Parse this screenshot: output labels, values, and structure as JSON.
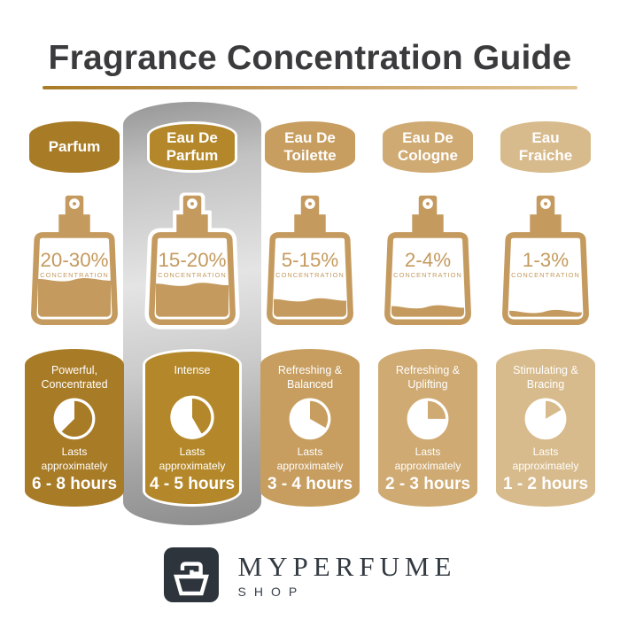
{
  "title": "Fragrance Concentration Guide",
  "concentration_label": "CONCENTRATION",
  "colors": {
    "title_text": "#3b3b3d",
    "underline_from": "#a97c28",
    "underline_to": "#e2c694",
    "bottle_gold": "#c49a5e",
    "highlight_silver": "#c2c2c2",
    "logo_dark": "#2e343c"
  },
  "columns": [
    {
      "label": "Parfum",
      "percent": "20-30%",
      "fill_level": 0.48,
      "description": "Powerful, Concentrated",
      "lasts_label": "Lasts approximately",
      "duration": "6 - 8 hours",
      "clock_degrees": 225,
      "color_hex": "#a87b26",
      "highlighted": false
    },
    {
      "label": "Eau De Parfum",
      "percent": "15-20%",
      "fill_level": 0.42,
      "description": "Intense",
      "lasts_label": "Lasts approximately",
      "duration": "4 - 5 hours",
      "clock_degrees": 150,
      "color_hex": "#b4882a",
      "highlighted": true
    },
    {
      "label": "Eau De Toilette",
      "percent": "5-15%",
      "fill_level": 0.22,
      "description": "Refreshing & Balanced",
      "lasts_label": "Lasts approximately",
      "duration": "3 - 4 hours",
      "clock_degrees": 120,
      "color_hex": "#c79e60",
      "highlighted": false
    },
    {
      "label": "Eau De Cologne",
      "percent": "2-4%",
      "fill_level": 0.13,
      "description": "Refreshing & Uplifting",
      "lasts_label": "Lasts approximately",
      "duration": "2 - 3 hours",
      "clock_degrees": 90,
      "color_hex": "#cfaa73",
      "highlighted": false
    },
    {
      "label": "Eau Fraiche",
      "percent": "1-3%",
      "fill_level": 0.07,
      "description": "Stimulating & Bracing",
      "lasts_label": "Lasts approximately",
      "duration": "1 - 2 hours",
      "clock_degrees": 60,
      "color_hex": "#d8bb8c",
      "highlighted": false
    }
  ],
  "footer": {
    "brand": "MYPERFUME",
    "sub": "SHOP"
  }
}
